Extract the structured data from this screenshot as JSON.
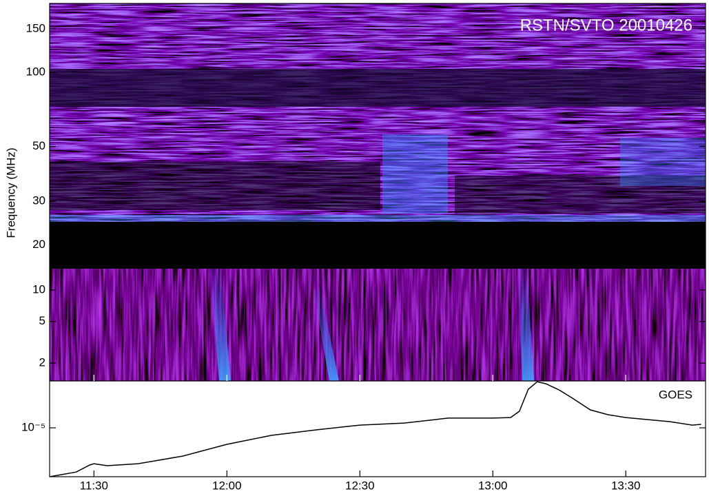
{
  "chart_data": [
    {
      "type": "spectrogram",
      "title": "RSTN/SVTO 20010426",
      "ylabel": "Frequency (MHz)",
      "log_scale": true,
      "bands": [
        {
          "ylim": [
            16,
            190
          ],
          "yticks": [
            150,
            100,
            50,
            30,
            20
          ]
        },
        {
          "ylim": [
            1.35,
            16
          ],
          "yticks": [
            10,
            5,
            2
          ]
        }
      ]
    },
    {
      "type": "line",
      "label": "GOES",
      "log_scale": true,
      "color": "#000000",
      "xlim": [
        "11:20",
        "13:48"
      ],
      "xticks": [
        "11:30",
        "12:00",
        "12:30",
        "13:00",
        "13:30"
      ],
      "ylim": [
        1.1e-06,
        8.3e-05
      ],
      "yticks": [
        {
          "value": 1e-05,
          "label": "10⁻⁵"
        }
      ],
      "x": [
        "11:20",
        "11:26",
        "11:29",
        "11:30",
        "11:33",
        "11:40",
        "11:50",
        "12:00",
        "12:10",
        "12:20",
        "12:30",
        "12:40",
        "12:50",
        "13:00",
        "13:04",
        "13:06",
        "13:08",
        "13:10",
        "13:12",
        "13:15",
        "13:18",
        "13:22",
        "13:26",
        "13:30",
        "13:40",
        "13:45",
        "13:47"
      ],
      "values": [
        1.1e-06,
        1.36e-06,
        1.86e-06,
        1.98e-06,
        1.81e-06,
        1.98e-06,
        2.79e-06,
        4.74e-06,
        7.1e-06,
        9.1e-06,
        1.13e-05,
        1.24e-05,
        1.55e-05,
        1.55e-05,
        1.59e-05,
        2.11e-05,
        5.7e-05,
        8e-05,
        7.3e-05,
        5.5e-05,
        3.8e-05,
        2.25e-05,
        1.81e-05,
        1.59e-05,
        1.32e-05,
        1.13e-05,
        1.17e-05
      ]
    }
  ]
}
